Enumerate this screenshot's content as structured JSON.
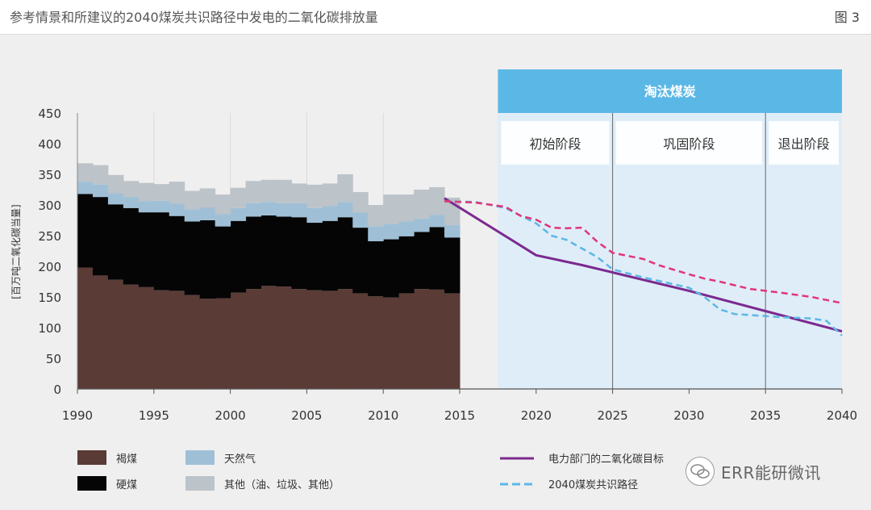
{
  "header": {
    "title": "参考情景和所建议的2040煤炭共识路径中发电的二氧化碳排放量",
    "figure_no": "图 3"
  },
  "phases": {
    "banner": "淘汰煤炭",
    "items": [
      "初始阶段",
      "巩固阶段",
      "退出阶段"
    ]
  },
  "watermark": "ERR能研微讯",
  "colors": {
    "lignite": "#5a3b36",
    "hard_coal": "#050505",
    "natural_gas": "#9fbfd6",
    "other": "#bcc3c9",
    "target_line": "#7b2a8f",
    "pathway_line": "#5bb8e6",
    "reference_line": "#e2357a",
    "banner": "#5bb8e6",
    "phase_bg": "#dcecf9"
  },
  "chart_data": {
    "type": "area",
    "title": "参考情景和所建议的2040煤炭共识路径中发电的二氧化碳排放量",
    "ylabel": "[百万吨二氧化碳当量]",
    "xlabel": "",
    "xlim": [
      1990,
      2040
    ],
    "ylim": [
      0,
      450
    ],
    "x_ticks": [
      1990,
      1995,
      2000,
      2005,
      2010,
      2015,
      2020,
      2025,
      2030,
      2035,
      2040
    ],
    "y_ticks": [
      0,
      50,
      100,
      150,
      200,
      250,
      300,
      350,
      400,
      450
    ],
    "stacked_years": [
      1990,
      1991,
      1992,
      1993,
      1994,
      1995,
      1996,
      1997,
      1998,
      1999,
      2000,
      2001,
      2002,
      2003,
      2004,
      2005,
      2006,
      2007,
      2008,
      2009,
      2010,
      2011,
      2012,
      2013,
      2014
    ],
    "stacked_series": [
      {
        "name": "褐煤",
        "key": "lignite",
        "values": [
          198,
          185,
          178,
          170,
          166,
          161,
          160,
          153,
          147,
          148,
          157,
          163,
          168,
          167,
          163,
          161,
          160,
          163,
          156,
          151,
          149,
          156,
          163,
          162,
          156
        ]
      },
      {
        "name": "硬煤",
        "key": "hard_coal",
        "values": [
          120,
          128,
          123,
          125,
          122,
          127,
          122,
          120,
          128,
          117,
          117,
          118,
          115,
          114,
          117,
          110,
          114,
          117,
          107,
          90,
          95,
          93,
          93,
          102,
          91
        ]
      },
      {
        "name": "天然气",
        "key": "natural_gas",
        "values": [
          20,
          20,
          18,
          18,
          18,
          19,
          20,
          20,
          21,
          20,
          21,
          22,
          22,
          22,
          23,
          24,
          24,
          25,
          25,
          24,
          25,
          24,
          22,
          20,
          20
        ]
      },
      {
        "name": "其他（油、垃圾、其他）",
        "key": "other",
        "values": [
          30,
          32,
          30,
          26,
          30,
          27,
          36,
          30,
          31,
          32,
          33,
          36,
          36,
          38,
          32,
          38,
          37,
          45,
          33,
          35,
          48,
          44,
          47,
          45,
          45
        ]
      }
    ],
    "series": [
      {
        "name": "电力部门的二氧化碳目标",
        "key": "target_line",
        "style": "solid",
        "points": [
          [
            2014,
            311
          ],
          [
            2020,
            218
          ],
          [
            2023,
            202
          ],
          [
            2025,
            190
          ],
          [
            2030,
            160
          ],
          [
            2035,
            127
          ],
          [
            2040,
            94
          ]
        ]
      },
      {
        "name": "2040煤炭共识路径",
        "key": "pathway_line",
        "style": "dashed",
        "points": [
          [
            2014,
            306
          ],
          [
            2016,
            305
          ],
          [
            2018,
            295
          ],
          [
            2020,
            270
          ],
          [
            2021,
            250
          ],
          [
            2022,
            243
          ],
          [
            2024,
            215
          ],
          [
            2025,
            195
          ],
          [
            2027,
            182
          ],
          [
            2030,
            165
          ],
          [
            2031,
            150
          ],
          [
            2032,
            130
          ],
          [
            2033,
            122
          ],
          [
            2035,
            119
          ],
          [
            2036,
            117
          ],
          [
            2038,
            115
          ],
          [
            2039,
            111
          ],
          [
            2040,
            87
          ]
        ]
      },
      {
        "key": "reference_line",
        "style": "dashed",
        "points": [
          [
            2014,
            306
          ],
          [
            2016,
            304
          ],
          [
            2018,
            297
          ],
          [
            2019,
            282
          ],
          [
            2020,
            276
          ],
          [
            2021,
            263
          ],
          [
            2022,
            262
          ],
          [
            2023,
            263
          ],
          [
            2024,
            240
          ],
          [
            2025,
            222
          ],
          [
            2027,
            212
          ],
          [
            2028,
            202
          ],
          [
            2030,
            187
          ],
          [
            2031,
            180
          ],
          [
            2032,
            175
          ],
          [
            2034,
            163
          ],
          [
            2035,
            160
          ],
          [
            2036,
            157
          ],
          [
            2038,
            150
          ],
          [
            2040,
            140
          ]
        ]
      }
    ],
    "phase_boundaries": [
      2017.5,
      2025,
      2035,
      2040
    ],
    "legend": [
      {
        "label": "褐煤",
        "key": "lignite",
        "kind": "swatch"
      },
      {
        "label": "硬煤",
        "key": "hard_coal",
        "kind": "swatch"
      },
      {
        "label": "天然气",
        "key": "natural_gas",
        "kind": "swatch"
      },
      {
        "label": "其他（油、垃圾、其他）",
        "key": "other",
        "kind": "swatch"
      },
      {
        "label": "电力部门的二氧化碳目标",
        "key": "target_line",
        "kind": "solid"
      },
      {
        "label": "2040煤炭共识路径",
        "key": "pathway_line",
        "kind": "dashed"
      }
    ]
  }
}
